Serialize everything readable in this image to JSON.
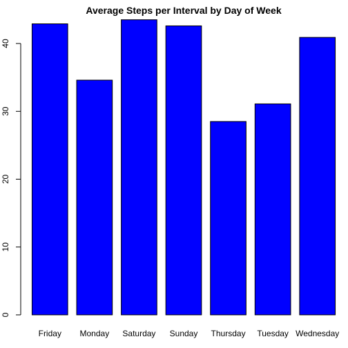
{
  "chart_data": {
    "type": "bar",
    "title": "Average Steps per Interval by Day of Week",
    "xlabel": "",
    "ylabel": "",
    "categories": [
      "Friday",
      "Monday",
      "Saturday",
      "Sunday",
      "Thursday",
      "Tuesday",
      "Wednesday"
    ],
    "values": [
      42.9,
      34.6,
      43.5,
      42.6,
      28.5,
      31.1,
      40.9
    ],
    "ylim": [
      0,
      45
    ],
    "yticks": [
      0,
      10,
      20,
      30,
      40
    ],
    "bar_color": "#0000ff",
    "grid": false
  }
}
